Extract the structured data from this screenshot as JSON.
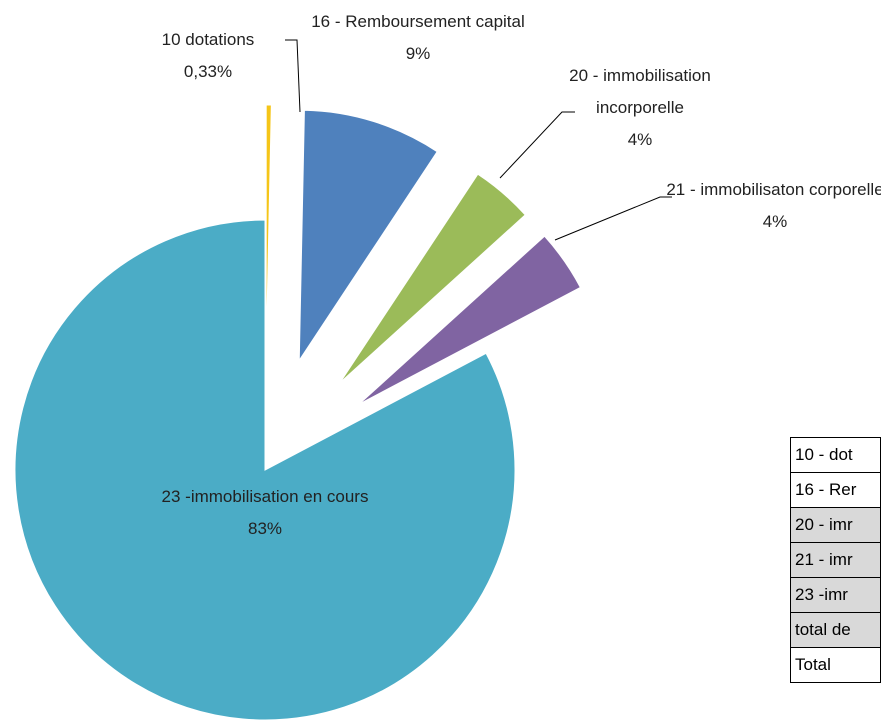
{
  "chart_data": {
    "type": "pie",
    "categories": [
      "10 dotations",
      "16 - Remboursement capital",
      "20  - immobilisation incorporelle",
      "21 - immobilisaton corporelle",
      "23 -immobilisation en cours"
    ],
    "values": [
      0.33,
      9,
      4,
      4,
      83
    ],
    "value_labels": [
      "0,33%",
      "9%",
      "4%",
      "4%",
      "83%"
    ],
    "colors": [
      "#f5c518",
      "#4f81bd",
      "#9bbb59",
      "#8064a2",
      "#4bacc6"
    ],
    "exploded": [
      true,
      true,
      true,
      true,
      false
    ]
  },
  "table": {
    "rows": [
      "10 - dot",
      "16 - Rer",
      "20 - imr",
      "21 - imr",
      "23 -imr",
      "total de",
      "Total"
    ]
  }
}
